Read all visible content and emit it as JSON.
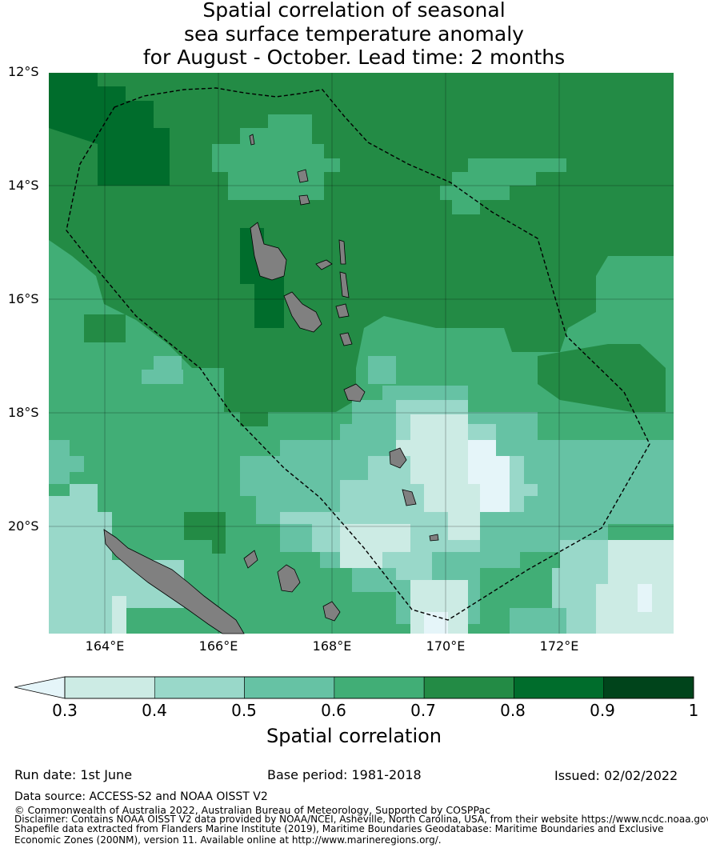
{
  "title": {
    "line1": "Spatial correlation of seasonal",
    "line2": "sea surface temperature anomaly",
    "line3": "for August - October. Lead time: 2 months"
  },
  "map": {
    "lat_labels": [
      "12°S",
      "14°S",
      "16°S",
      "18°S",
      "20°S"
    ],
    "lon_labels": [
      "164°E",
      "166°E",
      "168°E",
      "170°E",
      "172°E"
    ],
    "extent": {
      "lon_min": 163.0,
      "lon_max": 174.0,
      "lat_min": -21.9,
      "lat_max": -12.0
    },
    "land_color": "#808080",
    "eez_boundary": "dashed black line"
  },
  "colorbar": {
    "label": "Spatial correlation",
    "ticks": [
      "0.3",
      "0.4",
      "0.5",
      "0.6",
      "0.7",
      "0.8",
      "0.9",
      "1"
    ],
    "colors": [
      "#ccebe4",
      "#99d8c9",
      "#66c2a4",
      "#41ae76",
      "#238b45",
      "#006d2c",
      "#00441b"
    ],
    "under_color": "#e5f5f9"
  },
  "footer": {
    "run_date": "Run date: 1st June",
    "base_period": "Base period: 1981-2018",
    "issued": "Issued: 02/02/2022",
    "data_source": "Data source: ACCESS-S2 and NOAA OISST V2",
    "copyright": "© Commonwealth of Australia 2022, Australian Bureau of Meteorology, Supported by COSPPac",
    "disclaimer1": "Disclaimer: Contains NOAA OISST V2 data provided by NOAA/NCEI, Asheville, North Carolina, USA, from their website https://www.ncdc.noaa.gov",
    "disclaimer2": "Shapefile data extracted from Flanders Marine Institute (2019), Maritime Boundaries Geodatabase: Maritime Boundaries and Exclusive",
    "disclaimer3": "Economic Zones (200NM), version 11. Available online at http://www.marineregions.org/."
  }
}
